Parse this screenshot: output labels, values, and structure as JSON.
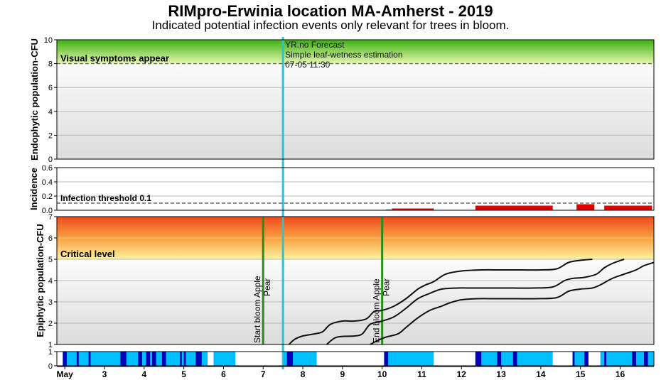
{
  "chart_data": {
    "type": "line",
    "title": "RIMpro-Erwinia location  MA-Amherst - 2019",
    "subtitle": "Indicated potential infection events only relevant for trees in bloom.",
    "x_axis": {
      "range_days": [
        1.8,
        16.85
      ],
      "ticks": [
        {
          "day": 2,
          "label": "May"
        },
        {
          "day": 3,
          "label": "3"
        },
        {
          "day": 4,
          "label": "4"
        },
        {
          "day": 5,
          "label": "5"
        },
        {
          "day": 6,
          "label": "6"
        },
        {
          "day": 7,
          "label": "7"
        },
        {
          "day": 8,
          "label": "8"
        },
        {
          "day": 9,
          "label": "9"
        },
        {
          "day": 10,
          "label": "10"
        },
        {
          "day": 11,
          "label": "11"
        },
        {
          "day": 12,
          "label": "12"
        },
        {
          "day": 13,
          "label": "13"
        },
        {
          "day": 14,
          "label": "14"
        },
        {
          "day": 15,
          "label": "15"
        },
        {
          "day": 16,
          "label": "16"
        }
      ]
    },
    "forecast": {
      "day": 7.5,
      "lines": [
        "YR.no Forecast",
        "Simple leaf-wetness estimation",
        "07-05 11:30"
      ],
      "color": "#22c8d8"
    },
    "endophytic": {
      "ylabel": "Endophytic population-CFU",
      "ylim": [
        0,
        10
      ],
      "yticks": [
        "0",
        "2",
        "4",
        "6",
        "8",
        "10"
      ],
      "threshold": 8,
      "threshold_label": "Visual symptoms appear"
    },
    "incidence": {
      "ylabel": "Incidence",
      "ylim": [
        0,
        0.6
      ],
      "yticks": [
        "0.0",
        "0.2",
        "0.4",
        "0.6"
      ],
      "threshold": 0.1,
      "threshold_label": "Infection threshold  0.1",
      "bar_color": "#dd0000",
      "bars": [
        {
          "start": 10.1,
          "end": 10.25,
          "value": 0.01
        },
        {
          "start": 10.25,
          "end": 11.3,
          "value": 0.025
        },
        {
          "start": 12.35,
          "end": 14.3,
          "value": 0.065
        },
        {
          "start": 14.9,
          "end": 15.35,
          "value": 0.085
        },
        {
          "start": 15.6,
          "end": 16.8,
          "value": 0.065
        }
      ]
    },
    "epiphytic": {
      "ylabel": "Epiphytic population-CFU",
      "ylim": [
        1,
        7
      ],
      "yticks": [
        "1",
        "2",
        "3",
        "4",
        "5",
        "6",
        "7"
      ],
      "critical": 5,
      "critical_label": "Critical level",
      "markers": [
        {
          "day": 7.0,
          "label": "Start bloom Apple",
          "label2": "Pear"
        },
        {
          "day": 10.0,
          "label": "End bloom Apple",
          "label2": "Pear"
        }
      ],
      "series": [
        {
          "x": [
            7.65,
            7.8,
            8.0,
            8.3,
            8.5,
            8.7,
            9.0,
            9.3,
            9.6,
            9.8,
            10.0,
            10.3,
            10.6,
            10.9,
            11.1,
            11.3,
            11.6,
            12.0,
            12.5,
            13.0,
            13.5,
            14.0,
            14.4,
            14.7,
            15.0,
            15.3
          ],
          "y": [
            1.0,
            1.25,
            1.4,
            1.5,
            1.6,
            1.95,
            2.1,
            2.1,
            2.2,
            2.55,
            2.6,
            2.8,
            3.15,
            3.6,
            3.8,
            3.95,
            4.3,
            4.45,
            4.5,
            4.5,
            4.5,
            4.5,
            4.55,
            4.85,
            4.95,
            5.0
          ]
        },
        {
          "x": [
            8.6,
            8.8,
            9.0,
            9.3,
            9.5,
            9.7,
            10.0,
            10.3,
            10.6,
            10.9,
            11.2,
            11.5,
            11.9,
            12.3,
            12.8,
            13.3,
            13.8,
            14.3,
            14.6,
            14.8,
            15.1,
            15.4,
            15.6,
            15.8,
            16.1
          ],
          "y": [
            1.0,
            1.3,
            1.38,
            1.4,
            1.5,
            1.95,
            2.1,
            2.3,
            2.7,
            3.15,
            3.4,
            3.6,
            3.65,
            3.65,
            3.65,
            3.65,
            3.65,
            3.7,
            4.0,
            4.1,
            4.15,
            4.3,
            4.6,
            4.8,
            5.0
          ]
        },
        {
          "x": [
            9.7,
            9.9,
            10.1,
            10.4,
            10.6,
            10.9,
            11.2,
            11.5,
            11.7,
            12.0,
            12.4,
            12.9,
            13.4,
            13.9,
            14.4,
            14.7,
            15.0,
            15.3,
            15.5,
            15.8,
            16.1,
            16.4,
            16.6,
            16.85
          ],
          "y": [
            1.0,
            1.2,
            1.35,
            1.5,
            1.8,
            2.25,
            2.6,
            2.8,
            2.95,
            3.1,
            3.15,
            3.15,
            3.15,
            3.15,
            3.2,
            3.5,
            3.6,
            3.65,
            3.8,
            4.1,
            4.3,
            4.5,
            4.7,
            4.85
          ]
        }
      ]
    },
    "leaf_wetness": {
      "ylim": [
        0,
        1
      ],
      "yticks": [
        "0",
        "1"
      ],
      "colors": {
        "wet": "#00bfff",
        "dark": "#0000b8"
      },
      "light_intervals": [
        [
          1.95,
          5.6
        ],
        [
          5.75,
          6.3
        ],
        [
          7.5,
          8.35
        ],
        [
          10.05,
          11.3
        ],
        [
          12.35,
          14.3
        ],
        [
          14.8,
          15.2
        ],
        [
          15.5,
          16.85
        ]
      ],
      "dark_intervals": [
        [
          1.95,
          2.05
        ],
        [
          2.3,
          2.35
        ],
        [
          2.6,
          2.65
        ],
        [
          3.4,
          3.55
        ],
        [
          3.85,
          3.95
        ],
        [
          4.05,
          4.15
        ],
        [
          4.2,
          4.3
        ],
        [
          4.45,
          4.55
        ],
        [
          4.9,
          4.95
        ],
        [
          5.0,
          5.05
        ],
        [
          5.3,
          5.45
        ],
        [
          7.6,
          7.75
        ],
        [
          10.05,
          10.15
        ],
        [
          12.35,
          12.5
        ],
        [
          12.9,
          13.0
        ],
        [
          13.3,
          13.4
        ],
        [
          14.8,
          14.85
        ],
        [
          15.1,
          15.2
        ],
        [
          15.6,
          15.65
        ],
        [
          16.3,
          16.4
        ],
        [
          16.6,
          16.7
        ]
      ]
    }
  }
}
